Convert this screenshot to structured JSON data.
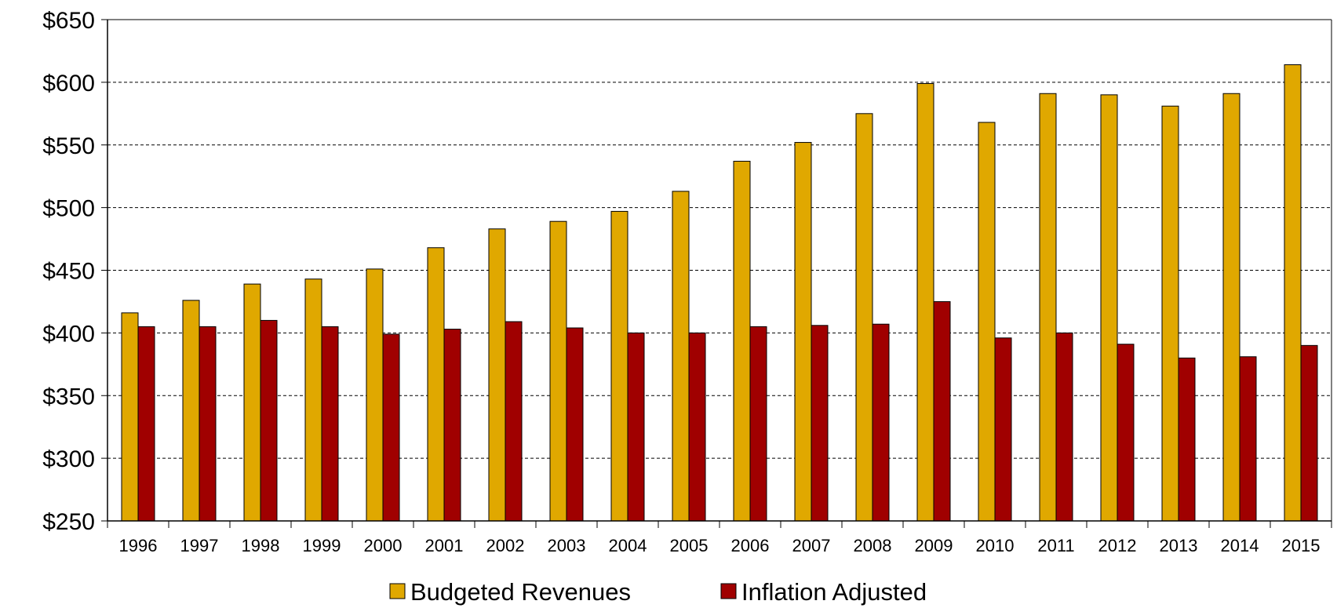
{
  "chart_data": {
    "type": "bar",
    "title": "",
    "xlabel": "",
    "ylabel": "",
    "ylim": [
      250,
      650
    ],
    "yticks": [
      250,
      300,
      350,
      400,
      450,
      500,
      550,
      600,
      650
    ],
    "ytick_labels": [
      "$250",
      "$300",
      "$350",
      "$400",
      "$450",
      "$500",
      "$550",
      "$600",
      "$650"
    ],
    "grid": "horizontal dashed",
    "legend_position": "bottom",
    "categories": [
      "1996",
      "1997",
      "1998",
      "1999",
      "2000",
      "2001",
      "2002",
      "2003",
      "2004",
      "2005",
      "2006",
      "2007",
      "2008",
      "2009",
      "2010",
      "2011",
      "2012",
      "2013",
      "2014",
      "2015"
    ],
    "series": [
      {
        "name": "Budgeted Revenues",
        "color": "#E0A800",
        "values": [
          416,
          426,
          439,
          443,
          451,
          468,
          483,
          489,
          497,
          513,
          537,
          552,
          575,
          599,
          568,
          591,
          590,
          581,
          591,
          614
        ]
      },
      {
        "name": "Inflation Adjusted",
        "color": "#A00000",
        "values": [
          405,
          405,
          410,
          405,
          399,
          403,
          409,
          404,
          400,
          400,
          405,
          406,
          407,
          425,
          396,
          400,
          391,
          380,
          381,
          390
        ]
      }
    ]
  }
}
